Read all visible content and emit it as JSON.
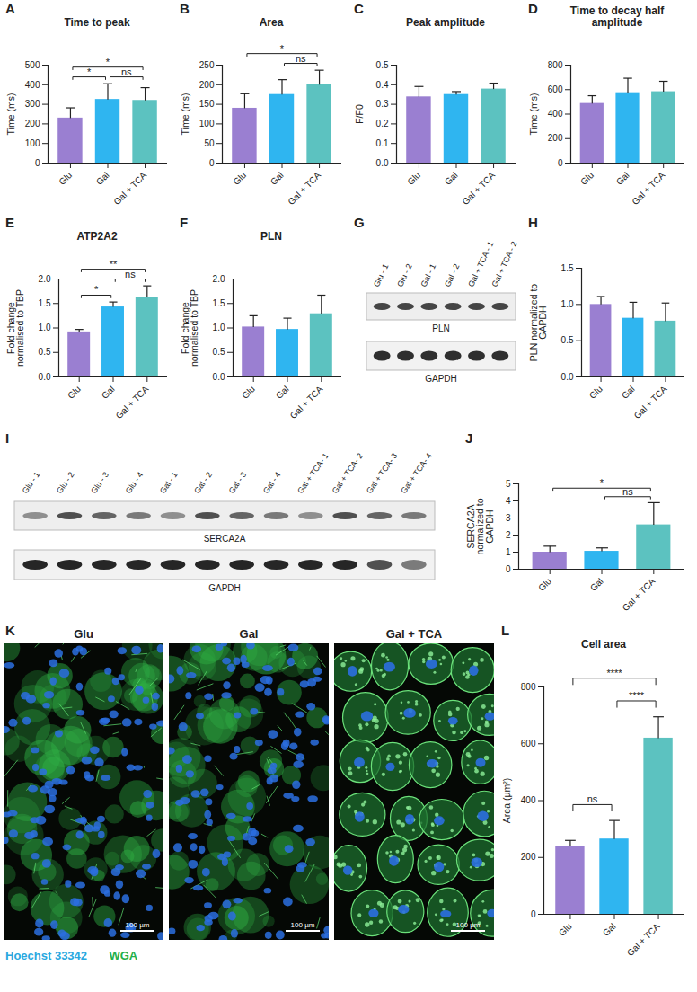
{
  "chart_data": [
    {
      "panel": "A",
      "type": "bar",
      "title": "Time to peak",
      "ylabel": "Time (ms)",
      "categories": [
        "Glu",
        "Gal",
        "Gal + TCA"
      ],
      "values": [
        230,
        325,
        320
      ],
      "errors": [
        52,
        80,
        65
      ],
      "colors": [
        "#9a7fd1",
        "#2fb5f0",
        "#5cc2c0"
      ],
      "ylim": [
        0,
        500
      ],
      "yticks": [
        0,
        100,
        200,
        300,
        400,
        500
      ],
      "annotations": [
        {
          "from": "Glu",
          "to": "Gal",
          "text": "*"
        },
        {
          "from": "Gal",
          "to": "Gal + TCA",
          "text": "ns"
        },
        {
          "from": "Glu",
          "to": "Gal + TCA",
          "text": "*"
        }
      ]
    },
    {
      "panel": "B",
      "type": "bar",
      "title": "Area",
      "ylabel": "Time (ms)",
      "categories": [
        "Glu",
        "Gal",
        "Gal + TCA"
      ],
      "values": [
        140,
        175,
        200
      ],
      "errors": [
        37,
        38,
        37
      ],
      "colors": [
        "#9a7fd1",
        "#2fb5f0",
        "#5cc2c0"
      ],
      "ylim": [
        0,
        250
      ],
      "yticks": [
        0,
        50,
        100,
        150,
        200,
        250
      ],
      "annotations": [
        {
          "from": "Gal",
          "to": "Gal + TCA",
          "text": "ns"
        },
        {
          "from": "Glu",
          "to": "Gal + TCA",
          "text": "*"
        }
      ]
    },
    {
      "panel": "C",
      "type": "bar",
      "title": "Peak amplitude",
      "ylabel": "F/F0",
      "categories": [
        "Glu",
        "Gal",
        "Gal + TCA"
      ],
      "values": [
        0.338,
        0.35,
        0.378
      ],
      "errors": [
        0.053,
        0.015,
        0.03
      ],
      "colors": [
        "#9a7fd1",
        "#2fb5f0",
        "#5cc2c0"
      ],
      "ylim": [
        0,
        0.5
      ],
      "yticks": [
        {
          "value": 0,
          "label": "0.0"
        },
        0.1,
        0.2,
        0.3,
        0.4,
        0.5
      ]
    },
    {
      "panel": "D",
      "type": "bar",
      "title": "Time to decay half amplitude",
      "ylabel": "Time (ms)",
      "categories": [
        "Glu",
        "Gal",
        "Gal + TCA"
      ],
      "values": [
        487,
        575,
        583
      ],
      "errors": [
        63,
        118,
        85
      ],
      "colors": [
        "#9a7fd1",
        "#2fb5f0",
        "#5cc2c0"
      ],
      "ylim": [
        0,
        800
      ],
      "yticks": [
        0,
        200,
        400,
        600,
        800
      ]
    },
    {
      "panel": "E",
      "type": "bar",
      "title": "ATP2A2",
      "ylabel": "Fold change normalised to TBP",
      "categories": [
        "Glu",
        "Gal",
        "Gal + TCA"
      ],
      "values": [
        0.92,
        1.43,
        1.63
      ],
      "errors": [
        0.05,
        0.1,
        0.23
      ],
      "colors": [
        "#9a7fd1",
        "#2fb5f0",
        "#5cc2c0"
      ],
      "ylim": [
        0,
        2
      ],
      "yticks": [
        {
          "value": 0,
          "label": "0.0"
        },
        0.5,
        {
          "value": 1,
          "label": "1.0"
        },
        1.5,
        {
          "value": 2,
          "label": "2.0"
        }
      ],
      "annotations": [
        {
          "from": "Glu",
          "to": "Gal",
          "text": "*"
        },
        {
          "from": "Gal",
          "to": "Gal + TCA",
          "text": "ns"
        },
        {
          "from": "Glu",
          "to": "Gal + TCA",
          "text": "**"
        }
      ]
    },
    {
      "panel": "F",
      "type": "bar",
      "title": "PLN",
      "ylabel": "Fold change normalised to TBP",
      "categories": [
        "Glu",
        "Gal",
        "Gal + TCA"
      ],
      "values": [
        1.02,
        0.97,
        1.29
      ],
      "errors": [
        0.23,
        0.23,
        0.38
      ],
      "colors": [
        "#9a7fd1",
        "#2fb5f0",
        "#5cc2c0"
      ],
      "ylim": [
        0,
        2
      ],
      "yticks": [
        {
          "value": 0,
          "label": "0.0"
        },
        0.5,
        {
          "value": 1,
          "label": "1.0"
        },
        1.5,
        {
          "value": 2,
          "label": "2.0"
        }
      ]
    },
    {
      "panel": "H",
      "type": "bar",
      "ylabel": "PLN normalized to GAPDH",
      "categories": [
        "Glu",
        "Gal",
        "Gal + TCA"
      ],
      "values": [
        1.0,
        0.81,
        0.77
      ],
      "errors": [
        0.11,
        0.22,
        0.25
      ],
      "colors": [
        "#9a7fd1",
        "#2fb5f0",
        "#5cc2c0"
      ],
      "ylim": [
        0,
        1.5
      ],
      "yticks": [
        {
          "value": 0,
          "label": "0.0"
        },
        0.5,
        {
          "value": 1,
          "label": "1.0"
        },
        1.5
      ]
    },
    {
      "panel": "J",
      "type": "bar",
      "ylabel": "SERCA2A normalized to GAPDH",
      "categories": [
        "Glu",
        "Gal",
        "Gal + TCA"
      ],
      "values": [
        1.0,
        1.05,
        2.6
      ],
      "errors": [
        0.35,
        0.2,
        1.3
      ],
      "colors": [
        "#9a7fd1",
        "#2fb5f0",
        "#5cc2c0"
      ],
      "ylim": [
        0,
        5
      ],
      "yticks": [
        0,
        1,
        2,
        3,
        4,
        5
      ],
      "annotations": [
        {
          "from": "Gal",
          "to": "Gal + TCA",
          "text": "ns"
        },
        {
          "from": "Glu",
          "to": "Gal + TCA",
          "text": "*"
        }
      ]
    },
    {
      "panel": "L",
      "type": "bar",
      "title": "Cell area",
      "ylabel": "Area (µm²)",
      "categories": [
        "Glu",
        "Gal",
        "Gal + TCA"
      ],
      "values": [
        240,
        265,
        620
      ],
      "errors": [
        20,
        65,
        75
      ],
      "colors": [
        "#9a7fd1",
        "#2fb5f0",
        "#5cc2c0"
      ],
      "ylim": [
        0,
        800
      ],
      "yticks": [
        0,
        200,
        400,
        600,
        800
      ],
      "annotations": [
        {
          "from": "Glu",
          "to": "Gal",
          "text": "ns"
        },
        {
          "from": "Gal",
          "to": "Gal + TCA",
          "text": "****"
        },
        {
          "from": "Glu",
          "to": "Gal + TCA",
          "text": "****"
        }
      ]
    }
  ],
  "blots": [
    {
      "panel": "G",
      "lanes": [
        "Glu - 1",
        "Glu - 2",
        "Gal - 1",
        "Gal - 2",
        "Gal + TCA - 1",
        "Gal + TCA - 2"
      ],
      "bands": [
        "PLN",
        "GAPDH"
      ]
    },
    {
      "panel": "I",
      "lanes": [
        "Glu - 1",
        "Glu - 2",
        "Glu - 3",
        "Glu - 4",
        "Gal - 1",
        "Gal - 2",
        "Gal - 3",
        "Gal - 4",
        "Gal + TCA- 1",
        "Gal + TCA- 2",
        "Gal + TCA- 3",
        "Gal + TCA- 4"
      ],
      "bands": [
        "SERCA2A",
        "GAPDH"
      ]
    }
  ],
  "micrographs": {
    "panel": "K",
    "titles": [
      "Glu",
      "Gal",
      "Gal + TCA"
    ],
    "scale_bar": "100 µm",
    "legend": [
      {
        "text": "Hoechst 33342",
        "color": "#29a8e0"
      },
      {
        "text": "WGA",
        "color": "#22b04b"
      }
    ]
  }
}
